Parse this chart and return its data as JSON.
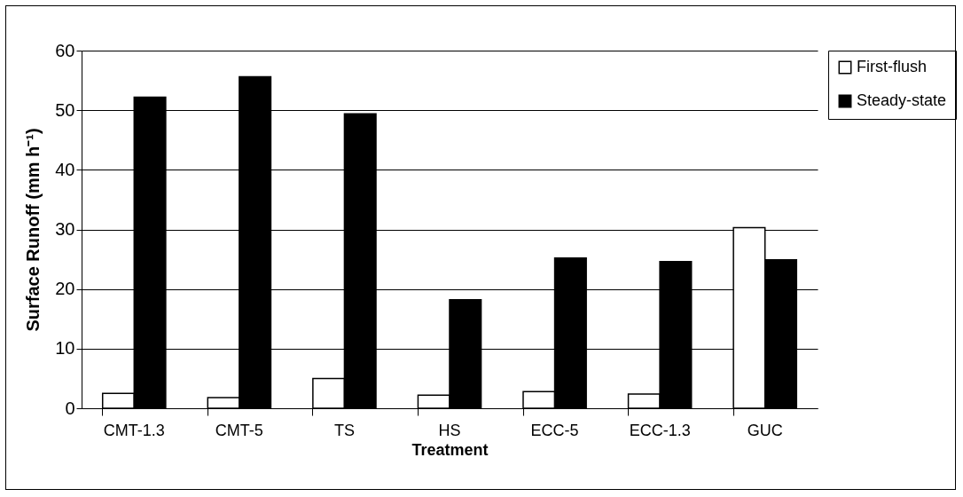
{
  "chart_data": {
    "type": "bar",
    "xlabel": "Treatment",
    "ylabel": "Surface Runoff (mm h⁻¹)",
    "categories": [
      "CMT-1.3",
      "CMT-5",
      "TS",
      "HS",
      "ECC-5",
      "ECC-1.3",
      "GUC"
    ],
    "series": [
      {
        "name": "First-flush",
        "color": "#ffffff",
        "values": [
          2.5,
          1.8,
          5.0,
          2.2,
          2.8,
          2.4,
          30.3
        ]
      },
      {
        "name": "Steady-state",
        "color": "#000000",
        "values": [
          52.2,
          55.6,
          49.4,
          18.2,
          25.2,
          24.6,
          24.9
        ]
      }
    ],
    "ylim": [
      0,
      60
    ],
    "yticks": [
      0,
      10,
      20,
      30,
      40,
      50,
      60
    ],
    "grid": "y",
    "legend": "right"
  }
}
